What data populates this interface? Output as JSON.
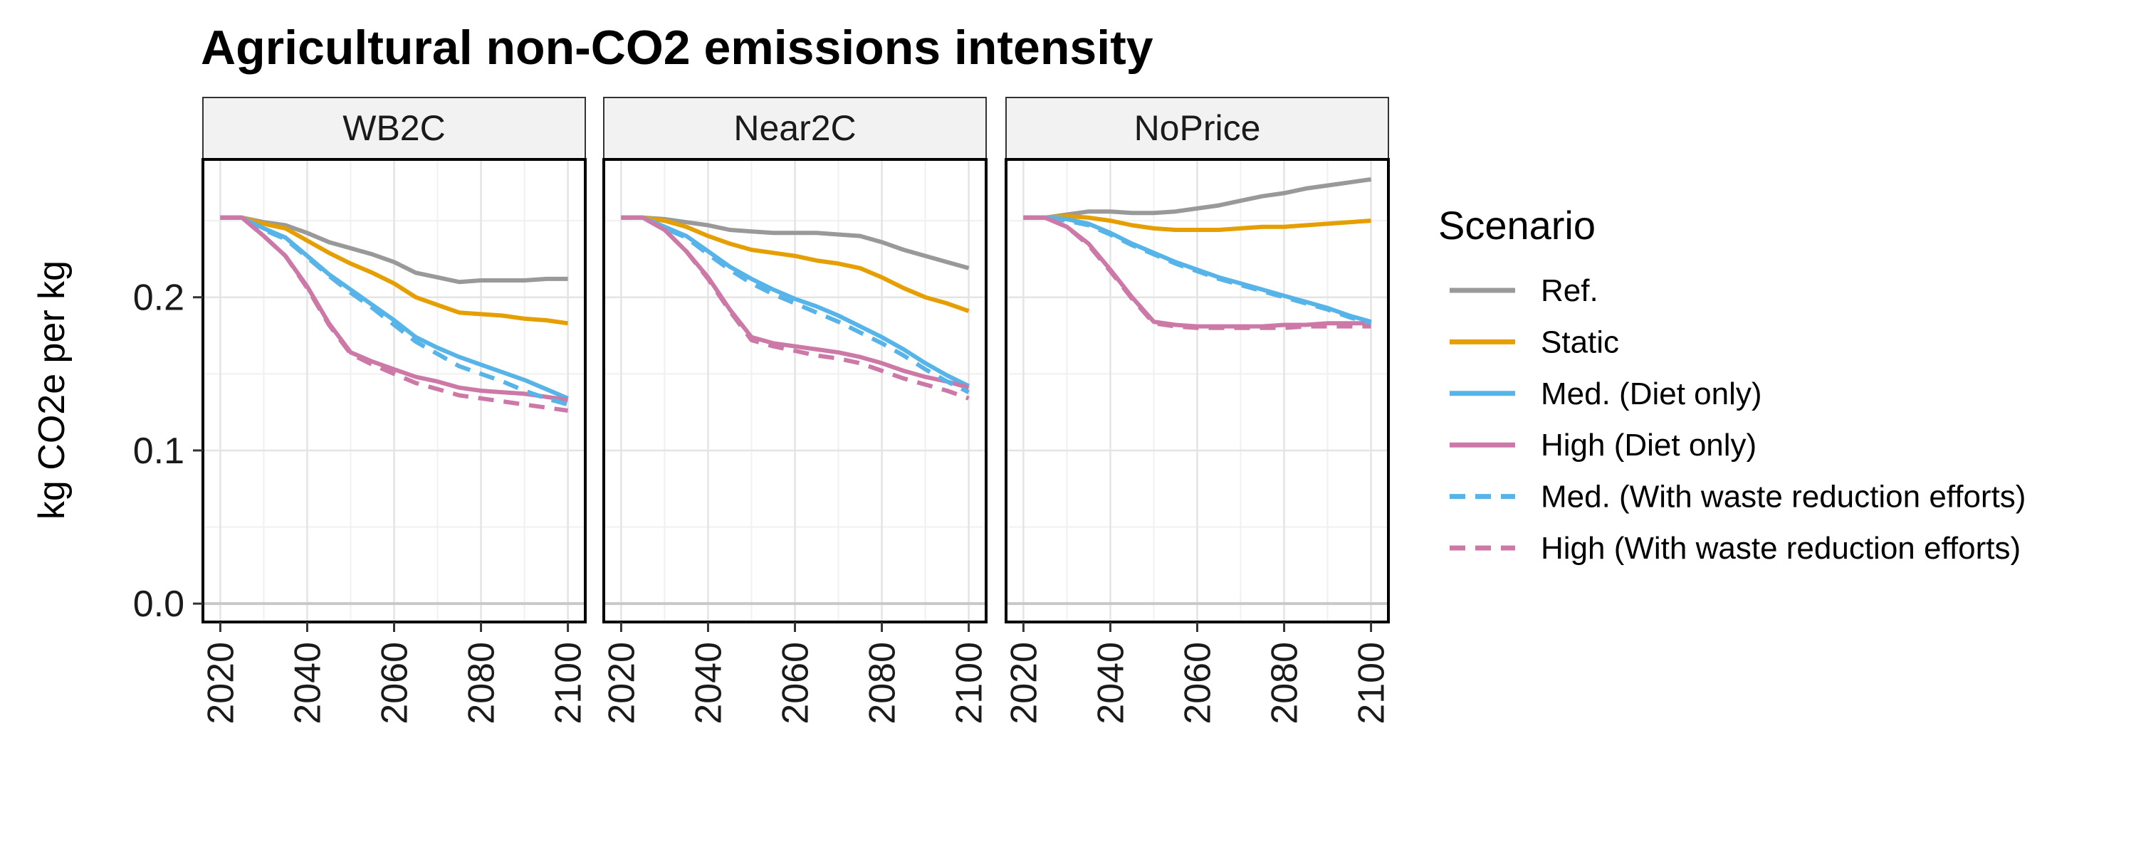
{
  "chart_data": {
    "type": "line",
    "title": "Agricultural non-CO2 emissions intensity",
    "ylabel": "kg CO2e per kg",
    "xlabel": "",
    "x_ticks": [
      2020,
      2040,
      2060,
      2080,
      2100
    ],
    "y_ticks": [
      0.0,
      0.1,
      0.2
    ],
    "y_tick_labels": [
      "0.0",
      "0.1",
      "0.2"
    ],
    "xlim": [
      2016,
      2104
    ],
    "ylim": [
      -0.012,
      0.29
    ],
    "grid": true,
    "legend_placement": "right",
    "legend": {
      "title": "Scenario",
      "entries": [
        {
          "label": "Ref.",
          "color": "#999999",
          "linestyle": "solid"
        },
        {
          "label": "Static",
          "color": "#E69F00",
          "linestyle": "solid"
        },
        {
          "label": "Med. (Diet only)",
          "color": "#56B4E9",
          "linestyle": "solid"
        },
        {
          "label": "High (Diet only)",
          "color": "#CC79A7",
          "linestyle": "solid"
        },
        {
          "label": "Med. (With waste reduction efforts)",
          "color": "#56B4E9",
          "linestyle": "dashed"
        },
        {
          "label": "High (With waste reduction efforts)",
          "color": "#CC79A7",
          "linestyle": "dashed"
        }
      ]
    },
    "x": [
      2020,
      2025,
      2030,
      2035,
      2040,
      2045,
      2050,
      2055,
      2060,
      2065,
      2070,
      2075,
      2080,
      2085,
      2090,
      2095,
      2100
    ],
    "panels": [
      {
        "strip": "WB2C",
        "series": [
          {
            "name": "Ref.",
            "values": [
              0.252,
              0.252,
              0.249,
              0.247,
              0.242,
              0.236,
              0.232,
              0.228,
              0.223,
              0.216,
              0.213,
              0.21,
              0.211,
              0.211,
              0.211,
              0.212,
              0.212
            ]
          },
          {
            "name": "Static",
            "values": [
              0.252,
              0.252,
              0.248,
              0.245,
              0.237,
              0.229,
              0.222,
              0.216,
              0.209,
              0.2,
              0.195,
              0.19,
              0.189,
              0.188,
              0.186,
              0.185,
              0.183
            ]
          },
          {
            "name": "Med. (Diet only)",
            "values": [
              0.252,
              0.252,
              0.245,
              0.239,
              0.227,
              0.215,
              0.205,
              0.195,
              0.185,
              0.174,
              0.167,
              0.161,
              0.156,
              0.151,
              0.146,
              0.14,
              0.134
            ]
          },
          {
            "name": "High (Diet only)",
            "values": [
              0.252,
              0.252,
              0.24,
              0.227,
              0.207,
              0.183,
              0.164,
              0.158,
              0.153,
              0.148,
              0.145,
              0.141,
              0.139,
              0.138,
              0.137,
              0.135,
              0.133
            ]
          },
          {
            "name": "Med. (With waste reduction efforts)",
            "values": [
              0.252,
              0.252,
              0.244,
              0.238,
              0.226,
              0.214,
              0.203,
              0.193,
              0.182,
              0.171,
              0.163,
              0.155,
              0.15,
              0.145,
              0.139,
              0.134,
              0.13
            ]
          },
          {
            "name": "High (With waste reduction efforts)",
            "values": [
              0.252,
              0.252,
              0.24,
              0.227,
              0.206,
              0.182,
              0.163,
              0.156,
              0.15,
              0.144,
              0.14,
              0.136,
              0.134,
              0.132,
              0.13,
              0.128,
              0.126
            ]
          }
        ]
      },
      {
        "strip": "Near2C",
        "series": [
          {
            "name": "Ref.",
            "values": [
              0.252,
              0.252,
              0.251,
              0.249,
              0.247,
              0.244,
              0.243,
              0.242,
              0.242,
              0.242,
              0.241,
              0.24,
              0.236,
              0.231,
              0.227,
              0.223,
              0.219
            ]
          },
          {
            "name": "Static",
            "values": [
              0.252,
              0.252,
              0.25,
              0.246,
              0.24,
              0.235,
              0.231,
              0.229,
              0.227,
              0.224,
              0.222,
              0.219,
              0.213,
              0.206,
              0.2,
              0.196,
              0.191
            ]
          },
          {
            "name": "Med. (Diet only)",
            "values": [
              0.252,
              0.252,
              0.246,
              0.24,
              0.23,
              0.22,
              0.212,
              0.205,
              0.199,
              0.194,
              0.188,
              0.181,
              0.174,
              0.166,
              0.157,
              0.149,
              0.142
            ]
          },
          {
            "name": "High (Diet only)",
            "values": [
              0.252,
              0.252,
              0.244,
              0.23,
              0.213,
              0.192,
              0.174,
              0.17,
              0.168,
              0.166,
              0.164,
              0.161,
              0.157,
              0.152,
              0.148,
              0.145,
              0.141
            ]
          },
          {
            "name": "Med. (With waste reduction efforts)",
            "values": [
              0.252,
              0.252,
              0.245,
              0.239,
              0.228,
              0.218,
              0.209,
              0.202,
              0.196,
              0.19,
              0.184,
              0.177,
              0.17,
              0.162,
              0.153,
              0.145,
              0.138
            ]
          },
          {
            "name": "High (With waste reduction efforts)",
            "values": [
              0.252,
              0.252,
              0.244,
              0.23,
              0.212,
              0.191,
              0.172,
              0.168,
              0.165,
              0.162,
              0.16,
              0.157,
              0.152,
              0.147,
              0.143,
              0.139,
              0.134
            ]
          }
        ]
      },
      {
        "strip": "NoPrice",
        "series": [
          {
            "name": "Ref.",
            "values": [
              0.252,
              0.252,
              0.254,
              0.256,
              0.256,
              0.255,
              0.255,
              0.256,
              0.258,
              0.26,
              0.263,
              0.266,
              0.268,
              0.271,
              0.273,
              0.275,
              0.277
            ]
          },
          {
            "name": "Static",
            "values": [
              0.252,
              0.252,
              0.253,
              0.252,
              0.25,
              0.247,
              0.245,
              0.244,
              0.244,
              0.244,
              0.245,
              0.246,
              0.246,
              0.247,
              0.248,
              0.249,
              0.25
            ]
          },
          {
            "name": "Med. (Diet only)",
            "values": [
              0.252,
              0.252,
              0.251,
              0.248,
              0.242,
              0.235,
              0.229,
              0.223,
              0.218,
              0.213,
              0.209,
              0.205,
              0.201,
              0.197,
              0.193,
              0.188,
              0.184
            ]
          },
          {
            "name": "High (Diet only)",
            "values": [
              0.252,
              0.252,
              0.246,
              0.235,
              0.218,
              0.2,
              0.184,
              0.182,
              0.181,
              0.181,
              0.181,
              0.181,
              0.182,
              0.182,
              0.183,
              0.183,
              0.183
            ]
          },
          {
            "name": "Med. (With waste reduction efforts)",
            "values": [
              0.252,
              0.252,
              0.25,
              0.247,
              0.241,
              0.234,
              0.228,
              0.222,
              0.217,
              0.212,
              0.208,
              0.204,
              0.2,
              0.196,
              0.192,
              0.187,
              0.183
            ]
          },
          {
            "name": "High (With waste reduction efforts)",
            "values": [
              0.252,
              0.252,
              0.246,
              0.234,
              0.217,
              0.199,
              0.183,
              0.181,
              0.18,
              0.18,
              0.18,
              0.18,
              0.18,
              0.181,
              0.181,
              0.181,
              0.181
            ]
          }
        ]
      }
    ]
  }
}
